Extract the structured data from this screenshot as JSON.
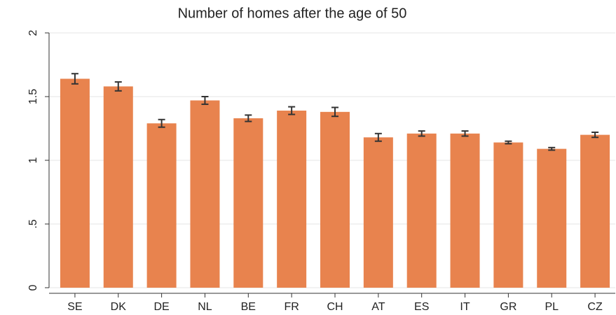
{
  "chart_data": {
    "type": "bar",
    "title": "Number of homes after the age of 50",
    "categories": [
      "SE",
      "DK",
      "DE",
      "NL",
      "BE",
      "FR",
      "CH",
      "AT",
      "ES",
      "IT",
      "GR",
      "PL",
      "CZ"
    ],
    "values": [
      1.64,
      1.58,
      1.29,
      1.47,
      1.33,
      1.39,
      1.38,
      1.18,
      1.21,
      1.21,
      1.14,
      1.09,
      1.2
    ],
    "errors": [
      0.04,
      0.035,
      0.03,
      0.03,
      0.025,
      0.03,
      0.035,
      0.03,
      0.02,
      0.02,
      0.01,
      0.01,
      0.02
    ],
    "color": "#e8834e",
    "error_color": "#333333",
    "ylim": [
      0,
      2
    ],
    "yticks": [
      0,
      {
        "value": 0.5,
        "label": ".5"
      },
      1,
      1.5,
      2
    ],
    "grid": true
  }
}
